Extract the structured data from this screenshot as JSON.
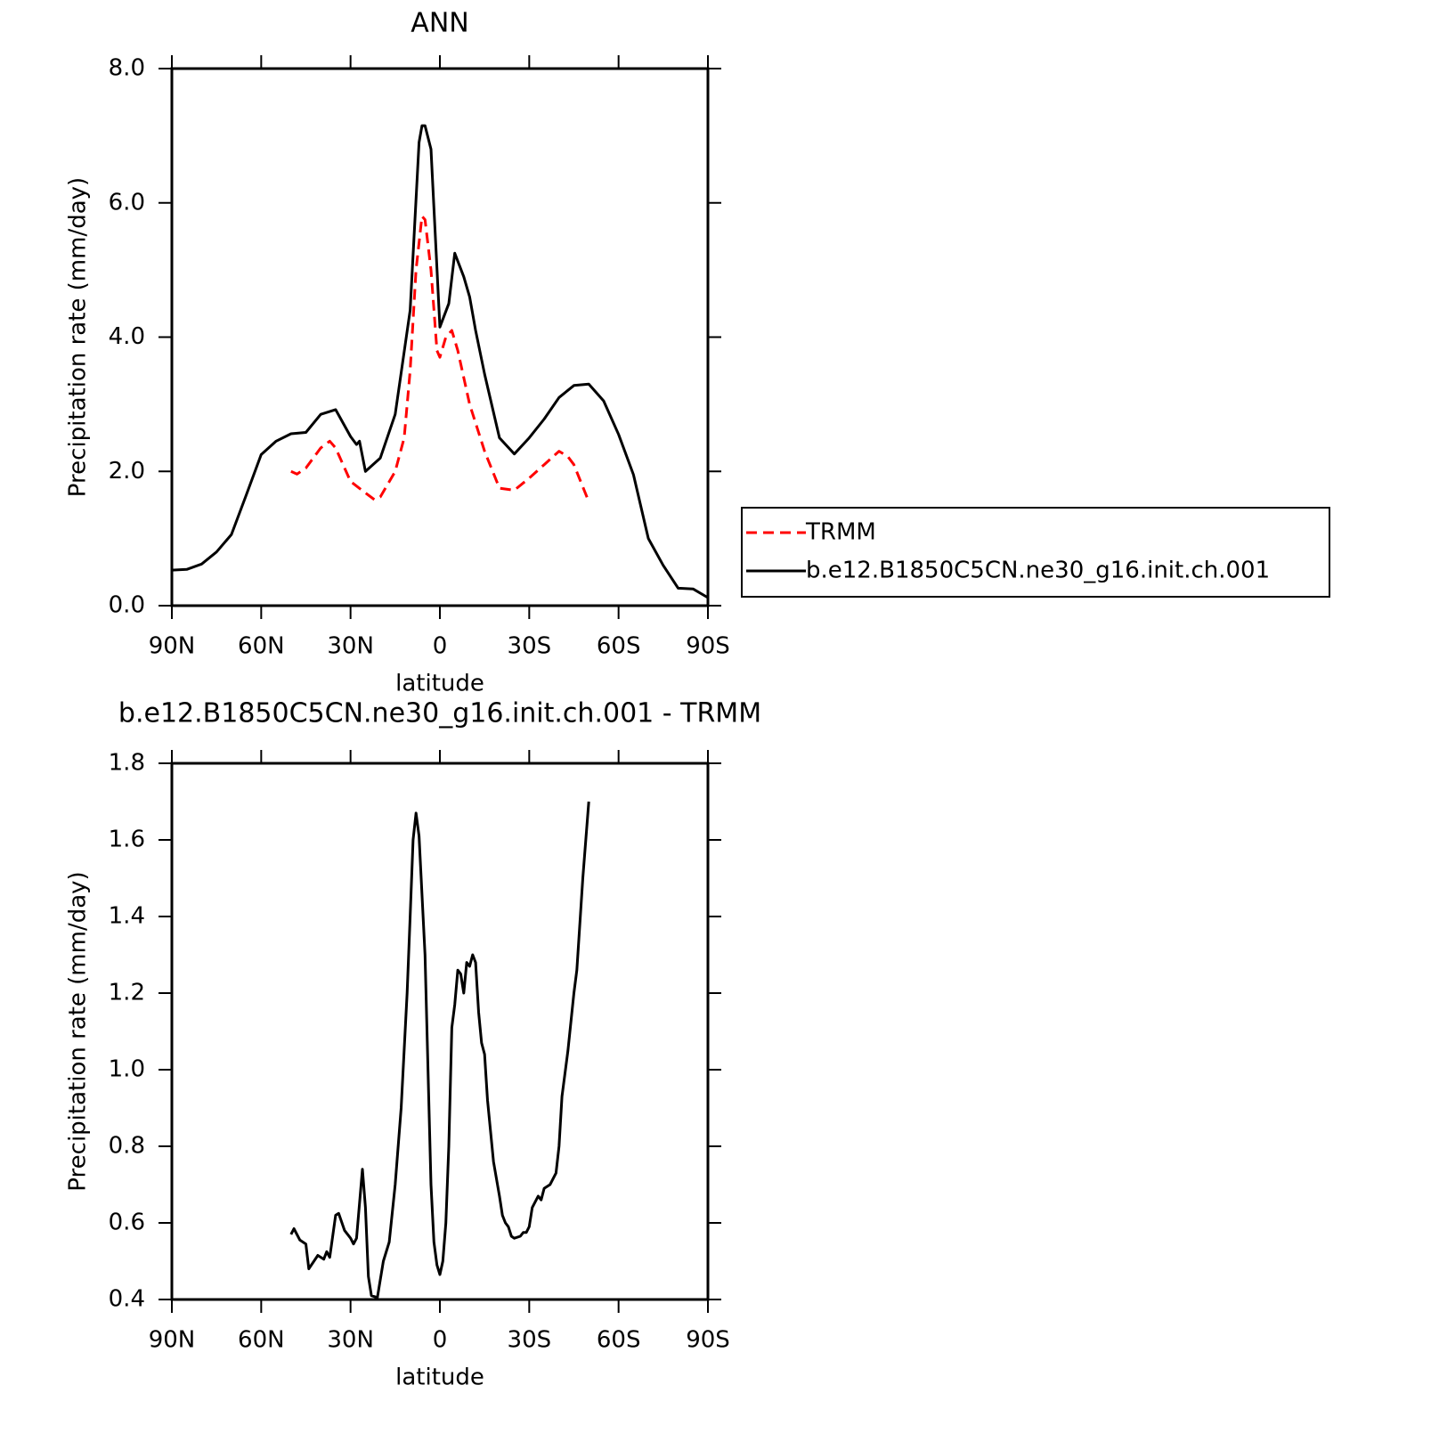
{
  "chart_data": [
    {
      "type": "line",
      "title": "ANN",
      "xlabel": "latitude",
      "ylabel": "Precipitation rate (mm/day)",
      "xlim": [
        90,
        -90
      ],
      "xticks": [
        {
          "value": 90,
          "label": "90N"
        },
        {
          "value": 60,
          "label": "60N"
        },
        {
          "value": 30,
          "label": "30N"
        },
        0,
        {
          "value": -30,
          "label": "30S"
        },
        {
          "value": -60,
          "label": "60S"
        },
        {
          "value": -90,
          "label": "90S"
        }
      ],
      "ylim": [
        0,
        8
      ],
      "yticks": [
        {
          "value": 0,
          "label": "0.0"
        },
        {
          "value": 2,
          "label": "2.0"
        },
        {
          "value": 4,
          "label": "4.0"
        },
        {
          "value": 6,
          "label": "6.0"
        },
        {
          "value": 8,
          "label": "8.0"
        }
      ],
      "legend": "right",
      "series": [
        {
          "name": "TRMM",
          "color": "#ff0000",
          "dash": true,
          "x": [
            50,
            48,
            45,
            40,
            37,
            35,
            30,
            25,
            22,
            20,
            15,
            12,
            10,
            8,
            6,
            5,
            3,
            1,
            0,
            -2,
            -4,
            -6,
            -10,
            -15,
            -20,
            -25,
            -30,
            -35,
            -40,
            -43,
            -45,
            -50
          ],
          "values": [
            2.0,
            1.96,
            2.05,
            2.35,
            2.45,
            2.35,
            1.85,
            1.68,
            1.58,
            1.62,
            2.0,
            2.5,
            3.5,
            5.0,
            5.8,
            5.75,
            5.0,
            3.8,
            3.7,
            4.0,
            4.1,
            3.8,
            3.0,
            2.3,
            1.75,
            1.72,
            1.9,
            2.1,
            2.3,
            2.22,
            2.1,
            1.55
          ]
        },
        {
          "name": "b.e12.B1850C5CN.ne30_g16.init.ch.001",
          "color": "#000000",
          "dash": false,
          "x": [
            90,
            85,
            80,
            75,
            70,
            65,
            60,
            55,
            50,
            45,
            40,
            35,
            30,
            28,
            27,
            25,
            20,
            15,
            10,
            7,
            6,
            5,
            3,
            0,
            -3,
            -5,
            -8,
            -10,
            -12,
            -15,
            -20,
            -25,
            -30,
            -35,
            -40,
            -45,
            -50,
            -55,
            -60,
            -65,
            -70,
            -75,
            -80,
            -85,
            -90
          ],
          "values": [
            0.53,
            0.54,
            0.62,
            0.8,
            1.06,
            1.65,
            2.25,
            2.45,
            2.56,
            2.58,
            2.85,
            2.92,
            2.52,
            2.4,
            2.45,
            2.0,
            2.2,
            2.85,
            4.4,
            6.9,
            7.15,
            7.15,
            6.8,
            4.15,
            4.5,
            5.25,
            4.9,
            4.6,
            4.1,
            3.45,
            2.5,
            2.26,
            2.5,
            2.78,
            3.1,
            3.28,
            3.3,
            3.05,
            2.55,
            1.95,
            1.0,
            0.6,
            0.26,
            0.25,
            0.12
          ]
        }
      ]
    },
    {
      "type": "line",
      "title": "b.e12.B1850C5CN.ne30_g16.init.ch.001 - TRMM",
      "xlabel": "latitude",
      "ylabel": "Precipitation rate (mm/day)",
      "xlim": [
        90,
        -90
      ],
      "xticks": [
        {
          "value": 90,
          "label": "90N"
        },
        {
          "value": 60,
          "label": "60N"
        },
        {
          "value": 30,
          "label": "30N"
        },
        0,
        {
          "value": -30,
          "label": "30S"
        },
        {
          "value": -60,
          "label": "60S"
        },
        {
          "value": -90,
          "label": "90S"
        }
      ],
      "ylim": [
        0.4,
        1.8
      ],
      "yticks": [
        0.4,
        0.6,
        0.8,
        {
          "value": 1,
          "label": "1.0"
        },
        1.2,
        1.4,
        1.6,
        1.8
      ],
      "series": [
        {
          "color": "#000000",
          "dash": false,
          "x": [
            50,
            49,
            47,
            45,
            44,
            41,
            39,
            38,
            37,
            35,
            34,
            32,
            30,
            29,
            28,
            26,
            25,
            24,
            23,
            21,
            19,
            17,
            15,
            13,
            11,
            10,
            9,
            8,
            7,
            5,
            3,
            2,
            1,
            0,
            -1,
            -2,
            -3,
            -4,
            -5,
            -6,
            -7,
            -8,
            -9,
            -10,
            -11,
            -12,
            -13,
            -14,
            -15,
            -16,
            -18,
            -20,
            -21,
            -22,
            -23,
            -24,
            -25,
            -27,
            -28,
            -29,
            -30,
            -31,
            -33,
            -34,
            -35,
            -37,
            -39,
            -40,
            -41,
            -43,
            -45,
            -46,
            -48,
            -50
          ],
          "values": [
            0.57,
            0.585,
            0.555,
            0.545,
            0.48,
            0.515,
            0.505,
            0.525,
            0.51,
            0.62,
            0.625,
            0.58,
            0.56,
            0.545,
            0.56,
            0.74,
            0.64,
            0.46,
            0.41,
            0.405,
            0.5,
            0.55,
            0.7,
            0.9,
            1.2,
            1.4,
            1.6,
            1.67,
            1.61,
            1.3,
            0.7,
            0.55,
            0.49,
            0.465,
            0.5,
            0.6,
            0.8,
            1.11,
            1.17,
            1.26,
            1.25,
            1.2,
            1.28,
            1.27,
            1.3,
            1.28,
            1.15,
            1.07,
            1.04,
            0.92,
            0.76,
            0.67,
            0.62,
            0.6,
            0.59,
            0.565,
            0.56,
            0.565,
            0.575,
            0.575,
            0.59,
            0.64,
            0.67,
            0.66,
            0.69,
            0.7,
            0.73,
            0.8,
            0.93,
            1.05,
            1.2,
            1.26,
            1.5,
            1.7
          ]
        }
      ]
    }
  ]
}
